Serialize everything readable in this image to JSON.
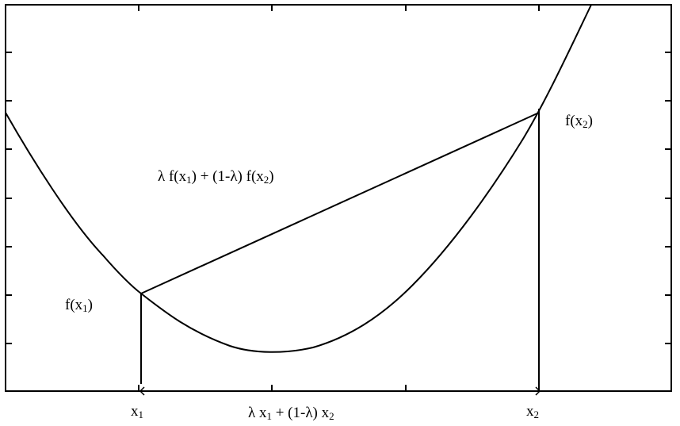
{
  "labels": {
    "f_x1": {
      "base": "f(x",
      "sub": "1",
      "close": ")"
    },
    "f_x2": {
      "base": "f(x",
      "sub": "2",
      "close": ")"
    },
    "chord": {
      "p1": "λ f(x",
      "s1": "1",
      "p2": ") + (1-λ) f(x",
      "s2": "2",
      "p3": ")"
    },
    "x1": {
      "base": "x",
      "sub": "1"
    },
    "x2": {
      "base": "x",
      "sub": "2"
    },
    "mix": {
      "p1": "λ x",
      "s1": "1",
      "p2": " + (1-λ) x",
      "s2": "2"
    }
  },
  "colors": {
    "line": "#000000",
    "background": "#ffffff"
  }
}
